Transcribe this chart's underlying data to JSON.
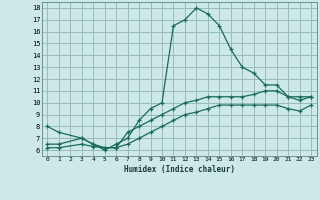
{
  "xlabel": "Humidex (Indice chaleur)",
  "background_color": "#cce8e8",
  "grid_color": "#99bbbb",
  "line_color": "#1a6b5a",
  "xlim": [
    -0.5,
    23.5
  ],
  "ylim": [
    5.5,
    18.5
  ],
  "xticks": [
    0,
    1,
    2,
    3,
    4,
    5,
    6,
    7,
    8,
    9,
    10,
    11,
    12,
    13,
    14,
    15,
    16,
    17,
    18,
    19,
    20,
    21,
    22,
    23
  ],
  "yticks": [
    6,
    7,
    8,
    9,
    10,
    11,
    12,
    13,
    14,
    15,
    16,
    17,
    18
  ],
  "series": [
    {
      "x": [
        0,
        1,
        3,
        4,
        5,
        6,
        7,
        8,
        9,
        10,
        11,
        12,
        13,
        14,
        15,
        16,
        17,
        18,
        19,
        20,
        21,
        22,
        23
      ],
      "y": [
        8.0,
        7.5,
        7.0,
        6.5,
        6.0,
        6.5,
        7.0,
        8.5,
        9.5,
        10.0,
        16.5,
        17.0,
        18.0,
        17.5,
        16.5,
        14.5,
        13.0,
        12.5,
        11.5,
        11.5,
        10.5,
        10.5,
        10.5
      ]
    },
    {
      "x": [
        0,
        1,
        3,
        4,
        5,
        6,
        7,
        8,
        9,
        10,
        11,
        12,
        13,
        14,
        15,
        16,
        17,
        18,
        19,
        20,
        21,
        22,
        23
      ],
      "y": [
        6.5,
        6.5,
        7.0,
        6.5,
        6.2,
        6.2,
        7.5,
        8.0,
        8.5,
        9.0,
        9.5,
        10.0,
        10.2,
        10.5,
        10.5,
        10.5,
        10.5,
        10.7,
        11.0,
        11.0,
        10.5,
        10.2,
        10.5
      ]
    },
    {
      "x": [
        0,
        1,
        3,
        4,
        5,
        6,
        7,
        8,
        9,
        10,
        11,
        12,
        13,
        14,
        15,
        16,
        17,
        18,
        19,
        20,
        21,
        22,
        23
      ],
      "y": [
        6.2,
        6.2,
        6.5,
        6.3,
        6.2,
        6.2,
        6.5,
        7.0,
        7.5,
        8.0,
        8.5,
        9.0,
        9.2,
        9.5,
        9.8,
        9.8,
        9.8,
        9.8,
        9.8,
        9.8,
        9.5,
        9.3,
        9.8
      ]
    }
  ]
}
